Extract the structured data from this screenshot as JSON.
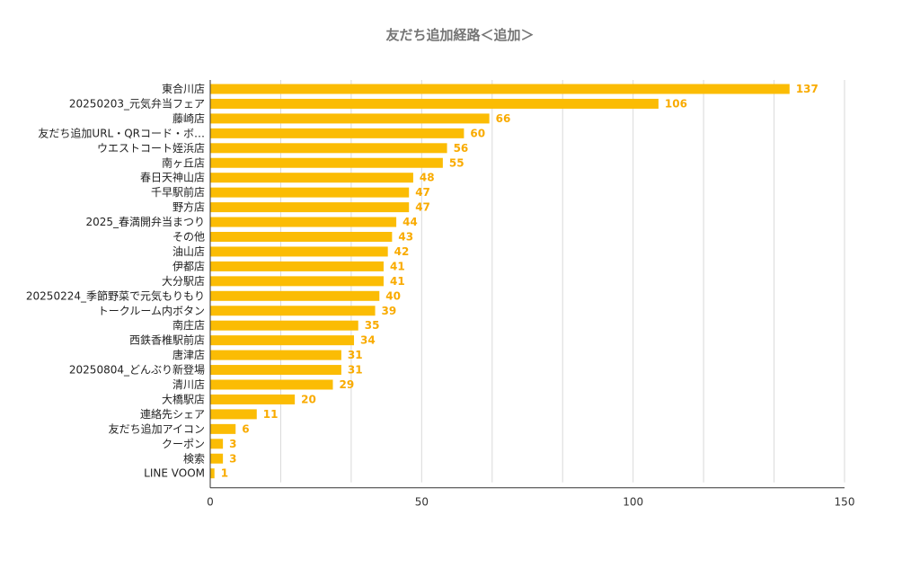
{
  "chart_title": "友だち追加経路＜追加＞",
  "colors": {
    "bar": "#FBBC04",
    "value_label": "#F9AB00",
    "gridline": "#DADADA",
    "axis": "#333333"
  },
  "chart_data": {
    "type": "bar",
    "orientation": "horizontal",
    "title": "友だち追加経路＜追加＞",
    "xlabel": "",
    "ylabel": "",
    "xlim": [
      0,
      150
    ],
    "x_ticks": [
      0,
      50,
      100,
      150
    ],
    "grid": true,
    "legend": "none",
    "categories": [
      "東合川店",
      "20250203_元気弁当フェア",
      "藤崎店",
      "友だち追加URL・QRコード・ボ…",
      "ウエストコート姪浜店",
      "南ヶ丘店",
      "春日天神山店",
      "千早駅前店",
      "野方店",
      "2025_春満開弁当まつり",
      "その他",
      "油山店",
      "伊都店",
      "大分駅店",
      "20250224_季節野菜で元気もりもり",
      "トークルーム内ボタン",
      "南庄店",
      "西鉄香椎駅前店",
      "唐津店",
      "20250804_どんぶり新登場",
      "清川店",
      "大橋駅店",
      "連絡先シェア",
      "友だち追加アイコン",
      "クーポン",
      "検索",
      "LINE VOOM"
    ],
    "values": [
      137,
      106,
      66,
      60,
      56,
      55,
      48,
      47,
      47,
      44,
      43,
      42,
      41,
      41,
      40,
      39,
      35,
      34,
      31,
      31,
      29,
      20,
      11,
      6,
      3,
      3,
      1
    ]
  }
}
